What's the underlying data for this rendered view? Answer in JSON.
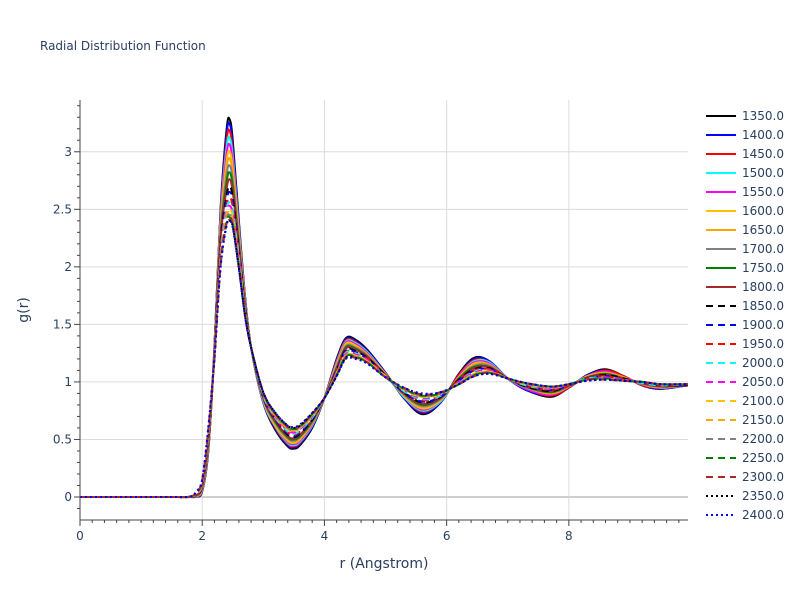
{
  "chart_data": {
    "type": "line",
    "title": "Radial Distribution Function",
    "xlabel": "r (Angstrom)",
    "ylabel": "g(r)",
    "xlim": [
      0,
      9.95
    ],
    "ylim": [
      -0.2,
      3.45
    ],
    "xticks": [
      0,
      2,
      4,
      6,
      8
    ],
    "yticks": [
      0,
      0.5,
      1,
      1.5,
      2,
      2.5,
      3
    ],
    "xtick_labels": [
      "0",
      "2",
      "4",
      "6",
      "8"
    ],
    "ytick_labels": [
      "0",
      "0.5",
      "1",
      "1.5",
      "2",
      "2.5",
      "3"
    ],
    "grid": true,
    "legend_position": "right",
    "x": [
      0,
      0.5,
      1.0,
      1.5,
      1.8,
      1.9,
      2.0,
      2.1,
      2.2,
      2.3,
      2.4,
      2.45,
      2.5,
      2.6,
      2.7,
      2.8,
      3.0,
      3.2,
      3.4,
      3.5,
      3.6,
      3.8,
      4.0,
      4.2,
      4.35,
      4.5,
      4.7,
      5.0,
      5.3,
      5.6,
      5.9,
      6.2,
      6.45,
      6.7,
      7.0,
      7.3,
      7.7,
      8.0,
      8.3,
      8.6,
      8.9,
      9.2,
      9.5,
      9.95
    ],
    "series": [
      {
        "name": "1350.0",
        "color": "#000000",
        "dash": "solid",
        "values": [
          0,
          0,
          0,
          0,
          0,
          0.003,
          0.05,
          0.4,
          1.3,
          2.5,
          3.2,
          3.28,
          3.1,
          2.4,
          1.75,
          1.3,
          0.82,
          0.58,
          0.44,
          0.42,
          0.45,
          0.6,
          0.86,
          1.2,
          1.38,
          1.37,
          1.28,
          1.08,
          0.86,
          0.72,
          0.82,
          1.07,
          1.21,
          1.18,
          1.03,
          0.93,
          0.87,
          0.95,
          1.06,
          1.11,
          1.05,
          0.97,
          0.94,
          0.97
        ]
      },
      {
        "name": "1400.0",
        "color": "#0000ff",
        "dash": "solid",
        "values": [
          0,
          0,
          0,
          0,
          0,
          0.004,
          0.055,
          0.41,
          1.3,
          2.48,
          3.16,
          3.24,
          3.06,
          2.38,
          1.74,
          1.3,
          0.82,
          0.59,
          0.45,
          0.43,
          0.46,
          0.61,
          0.86,
          1.19,
          1.37,
          1.36,
          1.27,
          1.08,
          0.86,
          0.73,
          0.82,
          1.06,
          1.2,
          1.18,
          1.03,
          0.93,
          0.88,
          0.95,
          1.06,
          1.1,
          1.05,
          0.97,
          0.94,
          0.97
        ]
      },
      {
        "name": "1450.0",
        "color": "#ff0000",
        "dash": "solid",
        "values": [
          0,
          0,
          0,
          0,
          0,
          0.005,
          0.06,
          0.42,
          1.29,
          2.45,
          3.1,
          3.18,
          3.0,
          2.35,
          1.73,
          1.3,
          0.83,
          0.6,
          0.46,
          0.44,
          0.47,
          0.62,
          0.86,
          1.18,
          1.36,
          1.35,
          1.26,
          1.07,
          0.87,
          0.74,
          0.83,
          1.06,
          1.19,
          1.17,
          1.03,
          0.94,
          0.88,
          0.95,
          1.05,
          1.1,
          1.05,
          0.97,
          0.95,
          0.97
        ]
      },
      {
        "name": "1500.0",
        "color": "#00ffff",
        "dash": "solid",
        "values": [
          0,
          0,
          0,
          0,
          0,
          0.006,
          0.065,
          0.43,
          1.29,
          2.42,
          3.04,
          3.12,
          2.95,
          2.33,
          1.72,
          1.3,
          0.83,
          0.61,
          0.47,
          0.45,
          0.48,
          0.62,
          0.86,
          1.17,
          1.35,
          1.34,
          1.26,
          1.07,
          0.87,
          0.75,
          0.83,
          1.05,
          1.18,
          1.17,
          1.03,
          0.94,
          0.89,
          0.96,
          1.05,
          1.09,
          1.04,
          0.98,
          0.95,
          0.97
        ]
      },
      {
        "name": "1550.0",
        "color": "#ff00ff",
        "dash": "solid",
        "values": [
          0,
          0,
          0,
          0,
          0,
          0.007,
          0.07,
          0.44,
          1.28,
          2.39,
          2.98,
          3.06,
          2.9,
          2.3,
          1.71,
          1.3,
          0.84,
          0.62,
          0.48,
          0.46,
          0.49,
          0.63,
          0.86,
          1.16,
          1.34,
          1.33,
          1.25,
          1.07,
          0.88,
          0.76,
          0.84,
          1.05,
          1.17,
          1.16,
          1.03,
          0.94,
          0.89,
          0.96,
          1.05,
          1.09,
          1.04,
          0.98,
          0.95,
          0.97
        ]
      },
      {
        "name": "1600.0",
        "color": "#ffc000",
        "dash": "solid",
        "values": [
          0,
          0,
          0,
          0,
          0,
          0.008,
          0.075,
          0.45,
          1.28,
          2.36,
          2.92,
          3.0,
          2.85,
          2.28,
          1.7,
          1.3,
          0.84,
          0.62,
          0.49,
          0.47,
          0.5,
          0.64,
          0.86,
          1.15,
          1.33,
          1.32,
          1.24,
          1.07,
          0.88,
          0.77,
          0.84,
          1.04,
          1.16,
          1.15,
          1.03,
          0.95,
          0.9,
          0.96,
          1.05,
          1.08,
          1.04,
          0.98,
          0.95,
          0.97
        ]
      },
      {
        "name": "1650.0",
        "color": "#ffa500",
        "dash": "solid",
        "values": [
          0,
          0,
          0,
          0,
          0,
          0.009,
          0.08,
          0.46,
          1.27,
          2.33,
          2.86,
          2.94,
          2.8,
          2.25,
          1.69,
          1.3,
          0.85,
          0.63,
          0.5,
          0.48,
          0.51,
          0.64,
          0.86,
          1.14,
          1.32,
          1.31,
          1.24,
          1.07,
          0.89,
          0.78,
          0.85,
          1.04,
          1.15,
          1.15,
          1.03,
          0.95,
          0.9,
          0.96,
          1.04,
          1.08,
          1.04,
          0.98,
          0.96,
          0.97
        ]
      },
      {
        "name": "1700.0",
        "color": "#808080",
        "dash": "solid",
        "values": [
          0,
          0,
          0,
          0,
          0,
          0.01,
          0.085,
          0.47,
          1.27,
          2.3,
          2.8,
          2.88,
          2.75,
          2.23,
          1.68,
          1.3,
          0.85,
          0.64,
          0.51,
          0.49,
          0.52,
          0.65,
          0.86,
          1.13,
          1.31,
          1.3,
          1.23,
          1.06,
          0.89,
          0.79,
          0.85,
          1.03,
          1.14,
          1.14,
          1.03,
          0.95,
          0.91,
          0.96,
          1.04,
          1.07,
          1.03,
          0.98,
          0.96,
          0.97
        ]
      },
      {
        "name": "1750.0",
        "color": "#008000",
        "dash": "solid",
        "values": [
          0,
          0,
          0,
          0,
          0,
          0.012,
          0.09,
          0.48,
          1.26,
          2.27,
          2.74,
          2.82,
          2.7,
          2.2,
          1.67,
          1.3,
          0.86,
          0.65,
          0.52,
          0.5,
          0.53,
          0.66,
          0.86,
          1.12,
          1.3,
          1.29,
          1.22,
          1.06,
          0.9,
          0.8,
          0.86,
          1.03,
          1.13,
          1.13,
          1.03,
          0.96,
          0.91,
          0.97,
          1.04,
          1.07,
          1.03,
          0.99,
          0.96,
          0.97
        ]
      },
      {
        "name": "1800.0",
        "color": "#a52a2a",
        "dash": "solid",
        "values": [
          0,
          0,
          0,
          0,
          0,
          0.014,
          0.095,
          0.49,
          1.26,
          2.24,
          2.68,
          2.76,
          2.65,
          2.18,
          1.66,
          1.3,
          0.86,
          0.66,
          0.53,
          0.51,
          0.54,
          0.67,
          0.86,
          1.11,
          1.29,
          1.28,
          1.22,
          1.06,
          0.9,
          0.81,
          0.86,
          1.02,
          1.12,
          1.13,
          1.03,
          0.96,
          0.92,
          0.97,
          1.04,
          1.06,
          1.03,
          0.99,
          0.96,
          0.97
        ]
      },
      {
        "name": "1850.0",
        "color": "#000000",
        "dash": "dash",
        "values": [
          0,
          0,
          0,
          0,
          0.001,
          0.016,
          0.1,
          0.5,
          1.25,
          2.21,
          2.62,
          2.7,
          2.6,
          2.15,
          1.65,
          1.3,
          0.87,
          0.67,
          0.54,
          0.52,
          0.55,
          0.67,
          0.86,
          1.1,
          1.28,
          1.27,
          1.21,
          1.06,
          0.91,
          0.82,
          0.87,
          1.02,
          1.11,
          1.12,
          1.03,
          0.96,
          0.92,
          0.97,
          1.03,
          1.06,
          1.03,
          0.99,
          0.97,
          0.97
        ]
      },
      {
        "name": "1900.0",
        "color": "#0000ff",
        "dash": "dash",
        "values": [
          0,
          0,
          0,
          0,
          0.001,
          0.018,
          0.105,
          0.51,
          1.25,
          2.18,
          2.58,
          2.65,
          2.56,
          2.13,
          1.64,
          1.3,
          0.87,
          0.67,
          0.55,
          0.53,
          0.56,
          0.68,
          0.86,
          1.1,
          1.27,
          1.26,
          1.2,
          1.05,
          0.91,
          0.83,
          0.87,
          1.01,
          1.1,
          1.11,
          1.03,
          0.97,
          0.93,
          0.97,
          1.03,
          1.05,
          1.02,
          0.99,
          0.97,
          0.97
        ]
      },
      {
        "name": "1950.0",
        "color": "#ff0000",
        "dash": "dash",
        "values": [
          0,
          0,
          0,
          0,
          0.001,
          0.02,
          0.11,
          0.52,
          1.24,
          2.15,
          2.54,
          2.6,
          2.52,
          2.11,
          1.63,
          1.3,
          0.88,
          0.68,
          0.56,
          0.54,
          0.57,
          0.69,
          0.86,
          1.09,
          1.26,
          1.25,
          1.2,
          1.05,
          0.92,
          0.84,
          0.88,
          1.01,
          1.1,
          1.11,
          1.03,
          0.97,
          0.93,
          0.97,
          1.03,
          1.05,
          1.02,
          0.99,
          0.97,
          0.98
        ]
      },
      {
        "name": "2000.0",
        "color": "#00ffff",
        "dash": "dash",
        "values": [
          0,
          0,
          0,
          0,
          0.001,
          0.022,
          0.115,
          0.53,
          1.24,
          2.12,
          2.5,
          2.56,
          2.48,
          2.09,
          1.62,
          1.3,
          0.88,
          0.69,
          0.57,
          0.55,
          0.58,
          0.69,
          0.86,
          1.08,
          1.25,
          1.25,
          1.19,
          1.05,
          0.92,
          0.85,
          0.88,
          1.0,
          1.09,
          1.1,
          1.03,
          0.97,
          0.94,
          0.98,
          1.03,
          1.04,
          1.02,
          0.99,
          0.97,
          0.98
        ]
      },
      {
        "name": "2050.0",
        "color": "#ff00ff",
        "dash": "dash",
        "values": [
          0,
          0,
          0,
          0,
          0.002,
          0.025,
          0.12,
          0.54,
          1.23,
          2.1,
          2.47,
          2.53,
          2.45,
          2.07,
          1.61,
          1.3,
          0.89,
          0.7,
          0.58,
          0.56,
          0.59,
          0.7,
          0.86,
          1.08,
          1.24,
          1.24,
          1.19,
          1.05,
          0.93,
          0.86,
          0.89,
          1.0,
          1.08,
          1.1,
          1.03,
          0.98,
          0.94,
          0.98,
          1.02,
          1.04,
          1.02,
          1.0,
          0.98,
          0.98
        ]
      },
      {
        "name": "2100.0",
        "color": "#ffc000",
        "dash": "dash",
        "values": [
          0,
          0,
          0,
          0,
          0.002,
          0.028,
          0.125,
          0.55,
          1.23,
          2.08,
          2.45,
          2.5,
          2.43,
          2.05,
          1.6,
          1.3,
          0.89,
          0.7,
          0.59,
          0.57,
          0.6,
          0.7,
          0.86,
          1.07,
          1.23,
          1.23,
          1.18,
          1.05,
          0.93,
          0.87,
          0.89,
          0.99,
          1.07,
          1.09,
          1.03,
          0.98,
          0.95,
          0.98,
          1.02,
          1.03,
          1.01,
          1.0,
          0.98,
          0.98
        ]
      },
      {
        "name": "2150.0",
        "color": "#ffa500",
        "dash": "dash",
        "values": [
          0,
          0,
          0,
          0,
          0.002,
          0.031,
          0.13,
          0.56,
          1.22,
          2.06,
          2.43,
          2.47,
          2.41,
          2.03,
          1.6,
          1.3,
          0.9,
          0.71,
          0.59,
          0.58,
          0.6,
          0.71,
          0.86,
          1.07,
          1.23,
          1.23,
          1.18,
          1.04,
          0.94,
          0.87,
          0.9,
          0.99,
          1.07,
          1.09,
          1.03,
          0.98,
          0.95,
          0.98,
          1.02,
          1.03,
          1.01,
          1.0,
          0.98,
          0.98
        ]
      },
      {
        "name": "2200.0",
        "color": "#808080",
        "dash": "dash",
        "values": [
          0,
          0,
          0,
          0,
          0.002,
          0.034,
          0.135,
          0.57,
          1.22,
          2.04,
          2.41,
          2.45,
          2.39,
          2.02,
          1.59,
          1.3,
          0.9,
          0.71,
          0.6,
          0.58,
          0.61,
          0.71,
          0.86,
          1.06,
          1.22,
          1.22,
          1.17,
          1.04,
          0.94,
          0.88,
          0.9,
          0.99,
          1.06,
          1.08,
          1.03,
          0.98,
          0.95,
          0.98,
          1.02,
          1.03,
          1.01,
          1.0,
          0.98,
          0.98
        ]
      },
      {
        "name": "2250.0",
        "color": "#008000",
        "dash": "dash",
        "values": [
          0,
          0,
          0,
          0,
          0.003,
          0.037,
          0.14,
          0.58,
          1.21,
          2.02,
          2.39,
          2.43,
          2.37,
          2.01,
          1.59,
          1.3,
          0.9,
          0.72,
          0.61,
          0.59,
          0.61,
          0.72,
          0.86,
          1.06,
          1.22,
          1.22,
          1.17,
          1.04,
          0.94,
          0.88,
          0.9,
          0.98,
          1.06,
          1.08,
          1.03,
          0.99,
          0.96,
          0.98,
          1.02,
          1.03,
          1.01,
          1.0,
          0.98,
          0.98
        ]
      },
      {
        "name": "2300.0",
        "color": "#a52a2a",
        "dash": "dash",
        "values": [
          0,
          0,
          0,
          0,
          0.003,
          0.04,
          0.145,
          0.59,
          1.21,
          2.01,
          2.38,
          2.41,
          2.36,
          2.0,
          1.58,
          1.3,
          0.91,
          0.72,
          0.61,
          0.6,
          0.62,
          0.72,
          0.86,
          1.06,
          1.21,
          1.21,
          1.17,
          1.04,
          0.95,
          0.89,
          0.91,
          0.98,
          1.05,
          1.08,
          1.03,
          0.99,
          0.96,
          0.98,
          1.02,
          1.02,
          1.01,
          1.0,
          0.98,
          0.98
        ]
      },
      {
        "name": "2350.0",
        "color": "#000000",
        "dash": "dot",
        "values": [
          0,
          0,
          0,
          0,
          0.003,
          0.043,
          0.15,
          0.6,
          1.2,
          2.0,
          2.37,
          2.4,
          2.35,
          1.99,
          1.58,
          1.3,
          0.91,
          0.73,
          0.62,
          0.6,
          0.62,
          0.73,
          0.86,
          1.05,
          1.21,
          1.21,
          1.16,
          1.04,
          0.95,
          0.89,
          0.91,
          0.98,
          1.05,
          1.07,
          1.03,
          0.99,
          0.96,
          0.98,
          1.01,
          1.02,
          1.01,
          1.0,
          0.98,
          0.98
        ]
      },
      {
        "name": "2400.0",
        "color": "#0000ff",
        "dash": "dot",
        "values": [
          0,
          0,
          0,
          0,
          0.003,
          0.045,
          0.155,
          0.61,
          1.2,
          1.99,
          2.36,
          2.39,
          2.34,
          1.98,
          1.57,
          1.3,
          0.91,
          0.73,
          0.62,
          0.61,
          0.63,
          0.73,
          0.86,
          1.05,
          1.2,
          1.2,
          1.16,
          1.04,
          0.95,
          0.9,
          0.91,
          0.98,
          1.05,
          1.07,
          1.03,
          0.99,
          0.96,
          0.98,
          1.01,
          1.02,
          1.01,
          1.0,
          0.98,
          0.98
        ]
      }
    ]
  }
}
